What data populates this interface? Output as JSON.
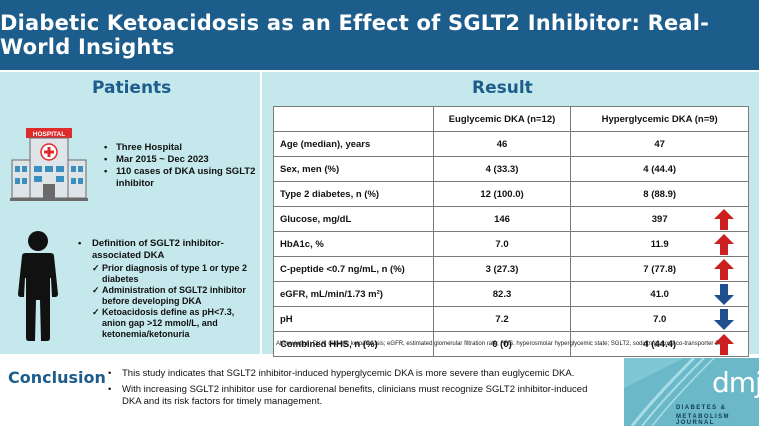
{
  "header": {
    "title": "Diabetic Ketoacidosis as an Effect of SGLT2 Inhibitor: Real-World Insights"
  },
  "patients": {
    "title": "Patients",
    "hospital_sign": "HOSPITAL",
    "bullets": [
      "Three Hospital",
      "Mar 2015 ~ Dec 2023",
      "110 cases of DKA using SGLT2 inhibitor"
    ],
    "definition": {
      "heading": "Definition of SGLT2 inhibitor-associated DKA",
      "checks": [
        "Prior diagnosis of type 1 or type 2 diabetes",
        "Administration of SGLT2 inhibitor before developing DKA",
        "Ketoacidosis define as pH<7.3, anion gap >12 mmol/L, and ketonemia/ketonuria"
      ]
    }
  },
  "result": {
    "title": "Result",
    "columns": [
      "",
      "Euglycemic DKA (n=12)",
      "Hyperglycemic DKA (n=9)"
    ],
    "rows": [
      {
        "label": "Age (median), years",
        "eu": "46",
        "hyper": "47",
        "arrow": "",
        "arrow_color": ""
      },
      {
        "label": "Sex, men (%)",
        "eu": "4 (33.3)",
        "hyper": "4 (44.4)",
        "arrow": "",
        "arrow_color": ""
      },
      {
        "label": "Type 2 diabetes, n (%)",
        "eu": "12 (100.0)",
        "hyper": "8 (88.9)",
        "arrow": "",
        "arrow_color": ""
      },
      {
        "label": "Glucose, mg/dL",
        "eu": "146",
        "hyper": "397",
        "arrow": "up",
        "arrow_color": "#cc1f1f"
      },
      {
        "label": "HbA1c, %",
        "eu": "7.0",
        "hyper": "11.9",
        "arrow": "up",
        "arrow_color": "#cc1f1f"
      },
      {
        "label": "C-peptide <0.7 ng/mL, n (%)",
        "eu": "3 (27.3)",
        "hyper": "7 (77.8)",
        "arrow": "up",
        "arrow_color": "#cc1f1f"
      },
      {
        "label": "eGFR, mL/min/1.73 m²)",
        "eu": "82.3",
        "hyper": "41.0",
        "arrow": "down",
        "arrow_color": "#1f4f8f"
      },
      {
        "label": "pH",
        "eu": "7.2",
        "hyper": "7.0",
        "arrow": "down",
        "arrow_color": "#1f4f8f"
      },
      {
        "label": "Combined HHS, n (%)",
        "eu": "0 (0)",
        "hyper": "4 (44.4)",
        "arrow": "up",
        "arrow_color": "#cc1f1f"
      }
    ],
    "abbreviation": "Abbreviation: DKA, diabetic ketoacidosis; eGFR, estimated glomerular filtration rate; HHS, hyperosmolar hyperglycemic state; SGLT2, sodium glucose co-transporter 2."
  },
  "conclusion": {
    "label": "Conclusion",
    "points": [
      "This study indicates that SGLT2 inhibitor-induced hyperglycemic DKA is more severe than euglycemic DKA.",
      "With increasing SGLT2 inhibitor use for cardiorenal benefits, clinicians must recognize SGLT2 inhibitor-induced DKA and its risk factors for timely management."
    ]
  },
  "logo": {
    "mark": "dmj",
    "line1": "DIABETES &",
    "line2": "METABOLISM JOURNAL"
  }
}
